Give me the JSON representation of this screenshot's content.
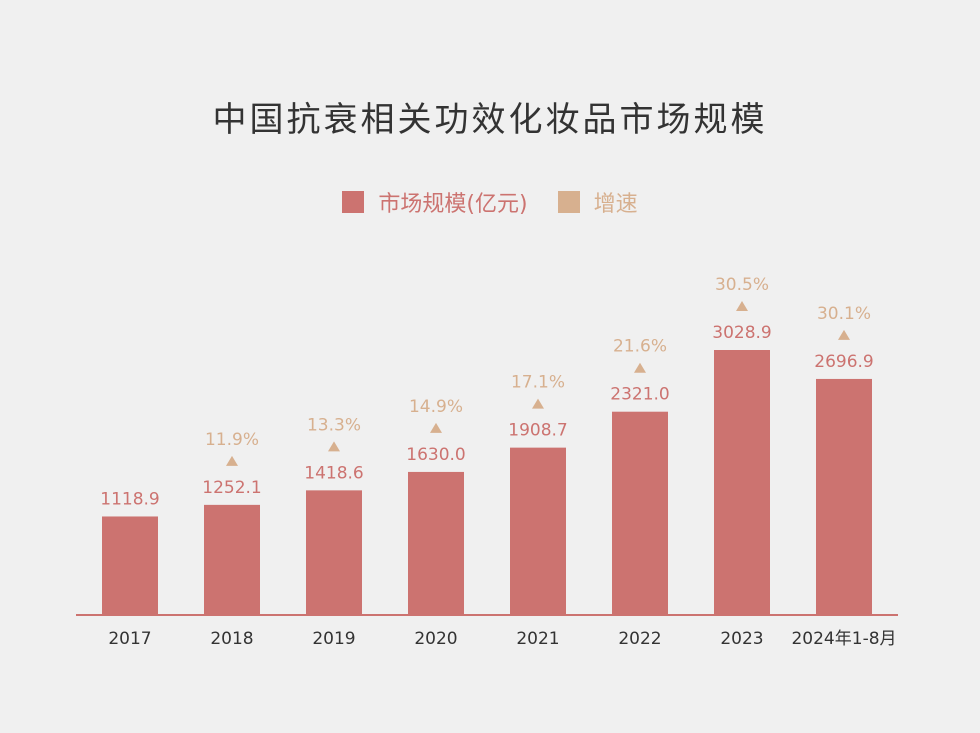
{
  "chart_data": {
    "type": "bar",
    "title": "中国抗衰相关功效化妆品市场规模",
    "categories": [
      "2017",
      "2018",
      "2019",
      "2020",
      "2021",
      "2022",
      "2023",
      "2024年1-8月"
    ],
    "series": [
      {
        "name": "市场规模(亿元)",
        "values": [
          1118.9,
          1252.1,
          1418.6,
          1630.0,
          1908.7,
          2321.0,
          3028.9,
          2696.9
        ],
        "labels": [
          "1118.9",
          "1252.1",
          "1418.6",
          "1630.0",
          "1908.7",
          "2321.0",
          "3028.9",
          "2696.9"
        ],
        "color": "#cc7370"
      },
      {
        "name": "增速",
        "values": [
          null,
          11.9,
          13.3,
          14.9,
          17.1,
          21.6,
          30.5,
          30.1
        ],
        "labels": [
          "",
          "11.9%",
          "13.3%",
          "14.9%",
          "17.1%",
          "21.6%",
          "30.5%",
          "30.1%"
        ],
        "color": "#d7b08f"
      }
    ],
    "legend_position": "top-center",
    "grid": false,
    "ylim": [
      0,
      3200
    ]
  }
}
